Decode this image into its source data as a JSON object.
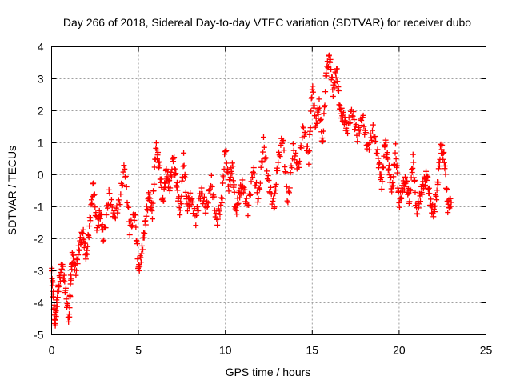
{
  "chart_data": {
    "type": "scatter",
    "title": "Day 266 of 2018, Sidereal Day-to-day VTEC variation (SDTVAR) for receiver dubo",
    "xlabel": "GPS time / hours",
    "ylabel": "SDTVAR / TECUs",
    "xlim": [
      0,
      25
    ],
    "ylim": [
      -5,
      4
    ],
    "xticks": [
      "0",
      "5",
      "10",
      "15",
      "20",
      "25"
    ],
    "yticks": [
      "-5",
      "-4",
      "-3",
      "-2",
      "-1",
      "0",
      "1",
      "2",
      "3",
      "4"
    ],
    "grid": true,
    "marker": "+",
    "color": "#ff0000",
    "series": [
      {
        "name": "SDTVAR",
        "x": [
          0.0,
          0.1,
          0.2,
          0.3,
          0.4,
          0.6,
          0.8,
          1.0,
          1.1,
          1.2,
          1.4,
          1.6,
          1.8,
          2.0,
          2.2,
          2.4,
          2.6,
          2.8,
          3.0,
          3.3,
          3.6,
          3.9,
          4.2,
          4.5,
          4.8,
          5.0,
          5.2,
          5.4,
          5.6,
          5.8,
          6.0,
          6.2,
          6.4,
          6.6,
          6.8,
          7.0,
          7.2,
          7.4,
          7.6,
          7.8,
          8.0,
          8.3,
          8.6,
          8.9,
          9.2,
          9.5,
          9.8,
          10.0,
          10.2,
          10.4,
          10.6,
          10.8,
          11.0,
          11.3,
          11.6,
          11.9,
          12.2,
          12.5,
          12.8,
          13.0,
          13.3,
          13.6,
          13.9,
          14.2,
          14.5,
          14.8,
          15.0,
          15.2,
          15.4,
          15.6,
          15.8,
          16.0,
          16.2,
          16.4,
          16.6,
          16.8,
          17.0,
          17.3,
          17.6,
          17.9,
          18.2,
          18.5,
          18.8,
          19.0,
          19.2,
          19.4,
          19.6,
          19.8,
          20.0,
          20.2,
          20.4,
          20.6,
          20.8,
          21.0,
          21.2,
          21.4,
          21.6,
          21.8,
          22.0,
          22.2,
          22.4,
          22.6,
          22.8,
          23.0
        ],
        "y": [
          -3.0,
          -3.8,
          -4.7,
          -4.0,
          -3.5,
          -2.8,
          -3.6,
          -4.6,
          -3.3,
          -2.5,
          -3.0,
          -2.2,
          -1.8,
          -2.6,
          -1.5,
          -0.3,
          -1.6,
          -1.2,
          -2.0,
          -0.6,
          -1.3,
          -0.9,
          0.3,
          -1.7,
          -1.2,
          -3.0,
          -2.4,
          -1.5,
          -0.6,
          -1.2,
          0.9,
          0.3,
          -0.9,
          0.1,
          -0.4,
          0.6,
          -0.3,
          -1.2,
          0.5,
          -1.0,
          -0.7,
          -1.4,
          -0.5,
          -1.1,
          -0.2,
          -1.5,
          -0.8,
          0.9,
          -0.4,
          0.3,
          -1.2,
          -0.6,
          -0.3,
          -1.1,
          0.2,
          -0.8,
          1.0,
          -0.3,
          -1.0,
          0.3,
          1.2,
          -0.9,
          0.8,
          0.2,
          1.5,
          0.5,
          2.8,
          1.5,
          2.2,
          0.9,
          3.2,
          3.7,
          2.6,
          3.3,
          2.0,
          1.8,
          1.4,
          2.0,
          1.2,
          1.8,
          0.8,
          1.4,
          0.5,
          -0.3,
          1.1,
          0.2,
          -0.5,
          0.8,
          -0.9,
          -0.4,
          -0.2,
          -0.8,
          0.5,
          -1.2,
          -0.7,
          -0.3,
          0.0,
          -0.9,
          -1.2,
          -0.4,
          0.9,
          0.5,
          -1.0,
          -0.8
        ]
      }
    ]
  }
}
